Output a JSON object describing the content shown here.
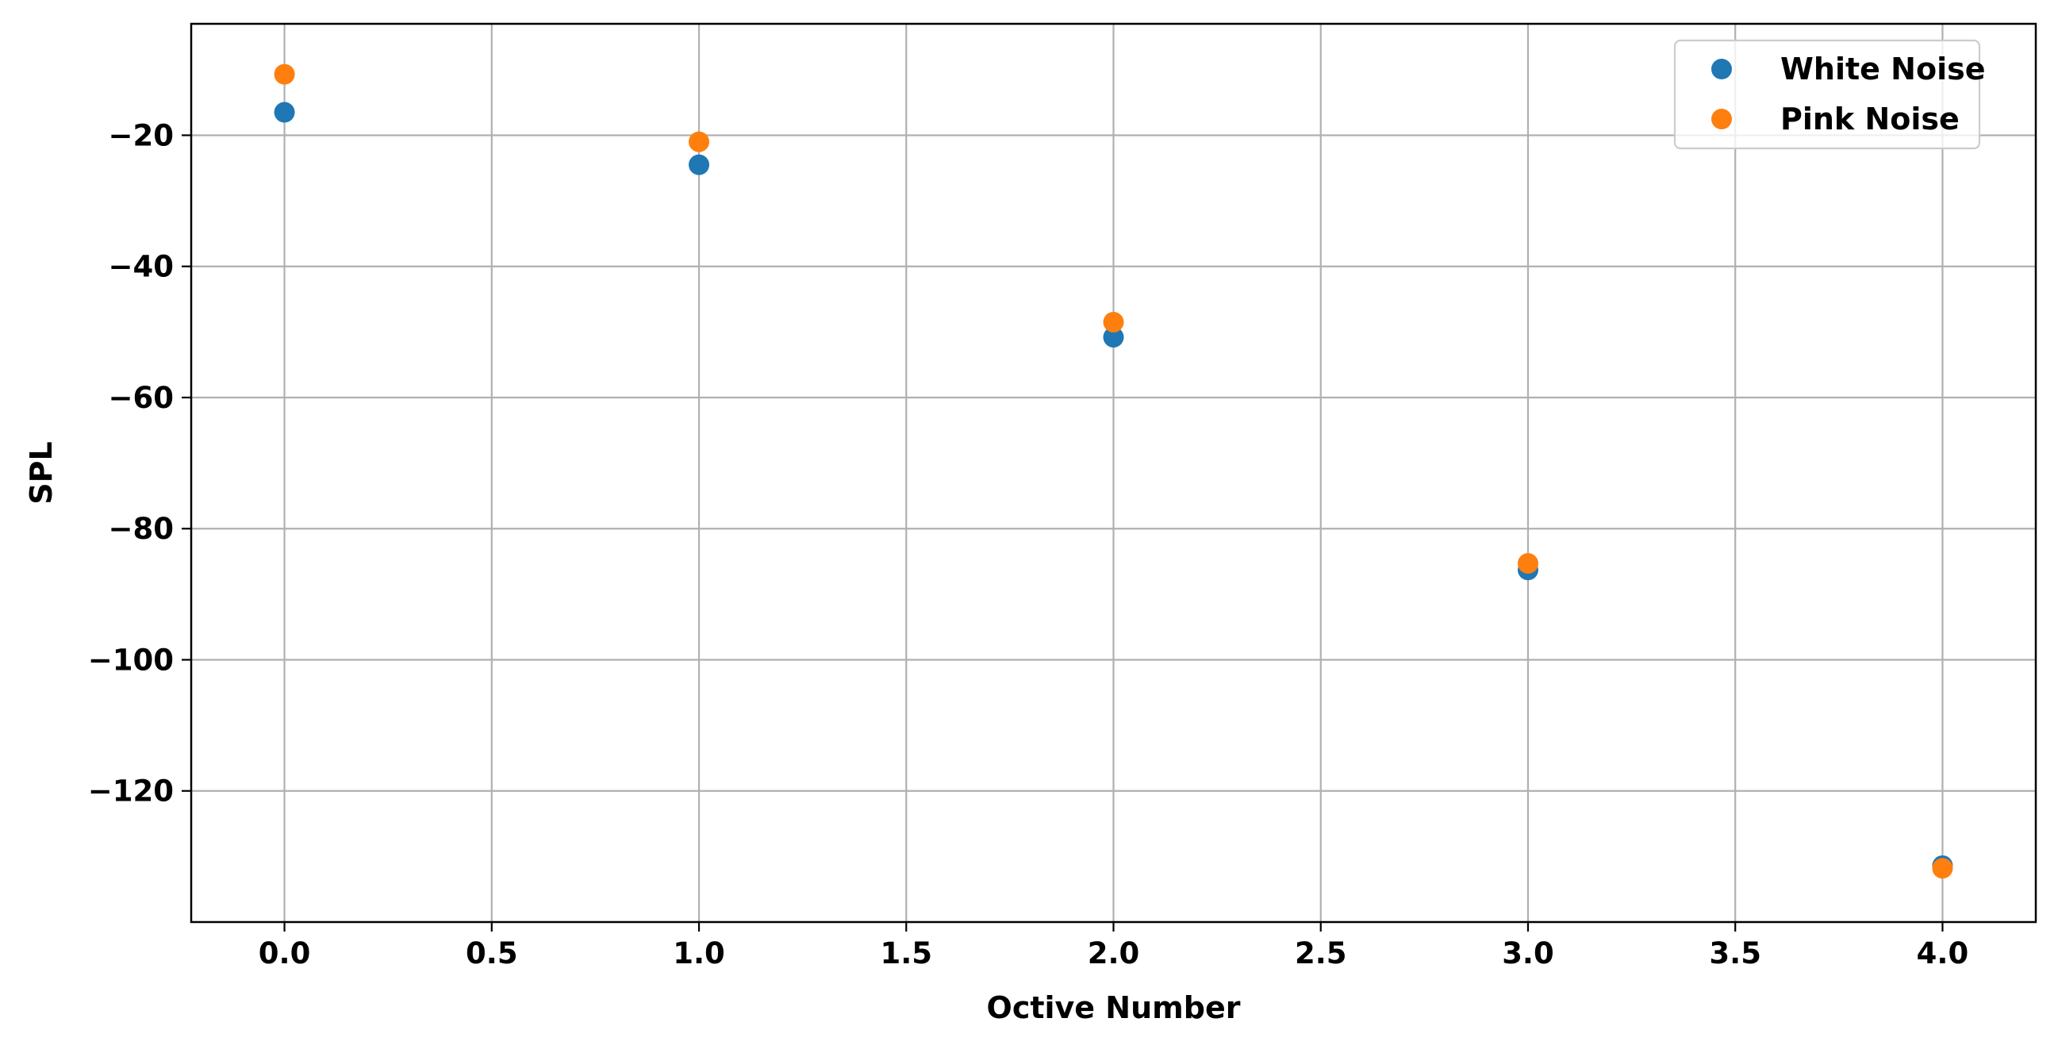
{
  "chart_data": {
    "type": "scatter",
    "title": "",
    "xlabel": "Octive Number",
    "ylabel": "SPL",
    "xlim": [
      -0.225,
      4.225
    ],
    "ylim": [
      -140,
      -3
    ],
    "xticks": [
      0.0,
      0.5,
      1.0,
      1.5,
      2.0,
      2.5,
      3.0,
      3.5,
      4.0
    ],
    "xtick_labels": [
      "0.0",
      "0.5",
      "1.0",
      "1.5",
      "2.0",
      "2.5",
      "3.0",
      "3.5",
      "4.0"
    ],
    "yticks": [
      -20,
      -40,
      -60,
      -80,
      -100,
      -120
    ],
    "ytick_labels": [
      "−20",
      "−40",
      "−60",
      "−80",
      "−100",
      "−120"
    ],
    "grid": true,
    "legend_position": "top-right",
    "series": [
      {
        "name": "White Noise",
        "color": "#1f77b4",
        "x": [
          0,
          1,
          2,
          3,
          4
        ],
        "y": [
          -16.5,
          -24.5,
          -50.8,
          -86.3,
          -131.4
        ]
      },
      {
        "name": "Pink Noise",
        "color": "#ff7f0e",
        "x": [
          0,
          1,
          2,
          3,
          4
        ],
        "y": [
          -10.7,
          -21.0,
          -48.5,
          -85.3,
          -131.8
        ]
      }
    ]
  }
}
